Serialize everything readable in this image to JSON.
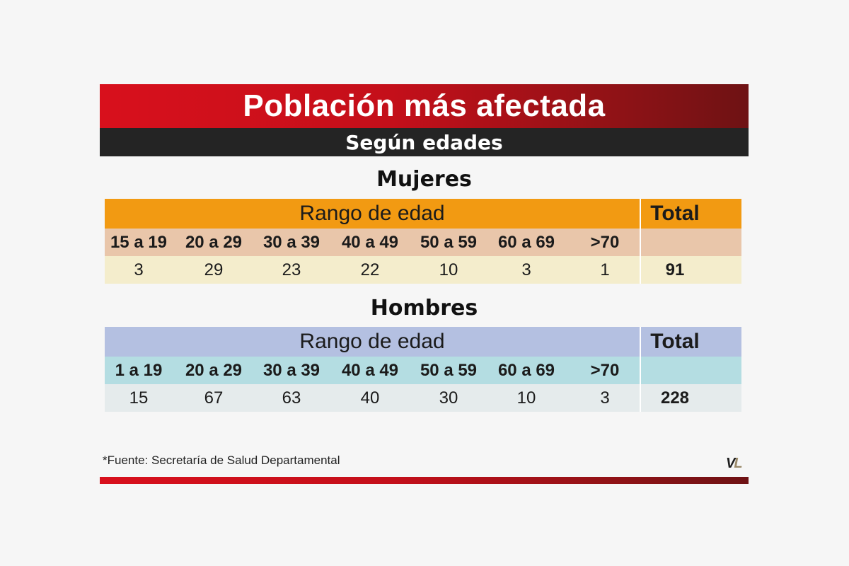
{
  "title": "Población más afectada",
  "subtitle": "Según edades",
  "tables": [
    {
      "heading": "Mujeres",
      "range_header": "Rango de edad",
      "total_header": "Total",
      "colors": {
        "header": "#f29a12",
        "labels": "#e9c6aa",
        "values": "#f4edcc"
      },
      "age_ranges": [
        "15 a 19",
        "20 a 29",
        "30 a 39",
        "40 a 49",
        "50 a 59",
        "60 a 69",
        ">70"
      ],
      "values": [
        "3",
        "29",
        "23",
        "22",
        "10",
        "3",
        "1"
      ],
      "total": "91"
    },
    {
      "heading": "Hombres",
      "range_header": "Rango de edad",
      "total_header": "Total",
      "colors": {
        "header": "#b4c0e1",
        "labels": "#b4dde2",
        "values": "#e5ebec"
      },
      "age_ranges": [
        "1 a 19",
        "20 a 29",
        "30 a 39",
        "40 a 49",
        "50 a 59",
        "60 a 69",
        ">70"
      ],
      "values": [
        "15",
        "67",
        "63",
        "40",
        "30",
        "10",
        "3"
      ],
      "total": "228"
    }
  ],
  "source": "*Fuente: Secretaría de Salud Departamental",
  "logo": {
    "part1": "V",
    "part2": "L"
  },
  "chart_data": [
    {
      "type": "table",
      "title": "Mujeres",
      "categories": [
        "15 a 19",
        "20 a 29",
        "30 a 39",
        "40 a 49",
        "50 a 59",
        "60 a 69",
        ">70"
      ],
      "values": [
        3,
        29,
        23,
        22,
        10,
        3,
        1
      ],
      "total": 91
    },
    {
      "type": "table",
      "title": "Hombres",
      "categories": [
        "1 a 19",
        "20 a 29",
        "30 a 39",
        "40 a 49",
        "50 a 59",
        "60 a 69",
        ">70"
      ],
      "values": [
        15,
        67,
        63,
        40,
        30,
        10,
        3
      ],
      "total": 228
    }
  ]
}
